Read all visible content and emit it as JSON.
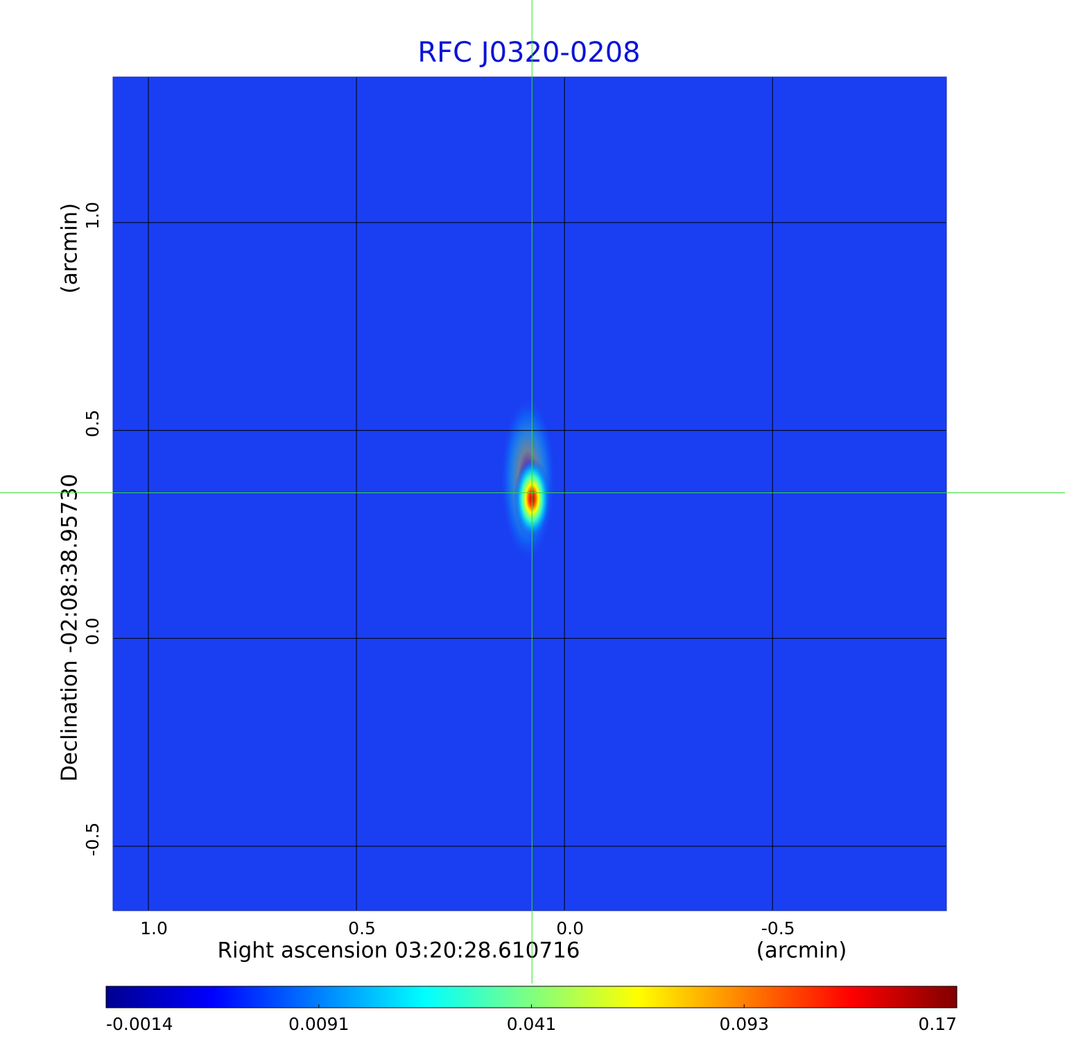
{
  "chart_data": {
    "type": "image",
    "title": "RFC J0320-0208",
    "xlabel": "Right ascension  03:20:28.610716",
    "xunit": "(arcmin)",
    "ylabel": "Declination  -02:08:38.95730",
    "yunit": "(arcmin)",
    "xlim": [
      1.085,
      -0.918
    ],
    "ylim": [
      -0.655,
      1.35
    ],
    "xticks": [
      1.0,
      0.5,
      0.0,
      -0.5
    ],
    "yticks": [
      -0.5,
      0.0,
      0.5,
      1.0
    ],
    "xtick_labels": [
      "1.0",
      "0.5",
      "0.0",
      "-0.5"
    ],
    "ytick_labels": [
      "-0.5",
      "0.0",
      "0.5",
      "1.0"
    ],
    "grid": true,
    "background_color": "#1a3ef2",
    "crosshair": {
      "x": 0.078,
      "y": 0.35,
      "color": "#33dd33"
    },
    "colorbar": {
      "ticks": [
        -0.0014,
        0.0091,
        0.041,
        0.093,
        0.17
      ],
      "colors": [
        "#00008f",
        "#0000ff",
        "#0080ff",
        "#00ffff",
        "#80ff80",
        "#ffff00",
        "#ff8000",
        "#ff0000",
        "#800000"
      ]
    }
  }
}
